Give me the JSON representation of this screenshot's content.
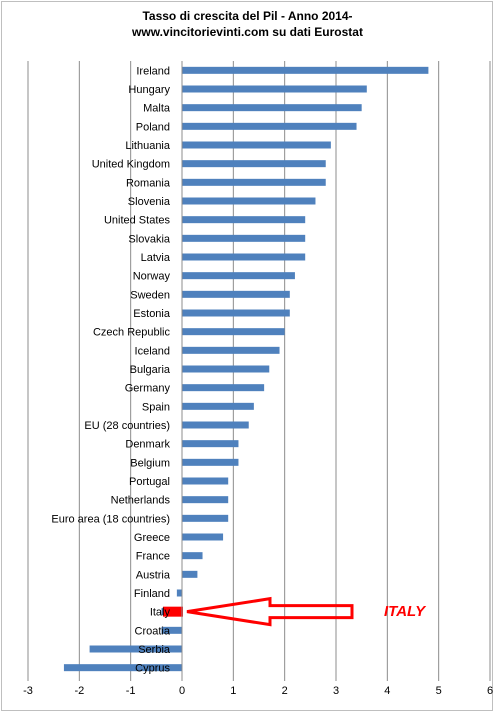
{
  "chart_data": {
    "type": "bar",
    "orientation": "horizontal",
    "title": "Tasso di crescita del Pil - Anno 2014-",
    "subtitle": "www.vincitorievinti.com su dati Eurostat",
    "categories": [
      "Ireland",
      "Hungary",
      "Malta",
      "Poland",
      "Lithuania",
      "United Kingdom",
      "Romania",
      "Slovenia",
      "United States",
      "Slovakia",
      "Latvia",
      "Norway",
      "Sweden",
      "Estonia",
      "Czech Republic",
      "Iceland",
      "Bulgaria",
      "Germany",
      "Spain",
      "EU (28 countries)",
      "Denmark",
      "Belgium",
      "Portugal",
      "Netherlands",
      "Euro area (18 countries)",
      "Greece",
      "France",
      "Austria",
      "Finland",
      "Italy",
      "Croatia",
      "Serbia",
      "Cyprus"
    ],
    "values": [
      4.8,
      3.6,
      3.5,
      3.4,
      2.9,
      2.8,
      2.8,
      2.6,
      2.4,
      2.4,
      2.4,
      2.2,
      2.1,
      2.1,
      2.0,
      1.9,
      1.7,
      1.6,
      1.4,
      1.3,
      1.1,
      1.1,
      0.9,
      0.9,
      0.9,
      0.8,
      0.4,
      0.3,
      -0.1,
      -0.4,
      -0.4,
      -1.8,
      -2.3
    ],
    "xlim": [
      -3,
      6
    ],
    "xticks": [
      "-3",
      "-2",
      "-1",
      "0",
      "1",
      "2",
      "3",
      "4",
      "5",
      "6"
    ],
    "gridlines": "vertical",
    "legend": "none",
    "colors": {
      "bar": "#4f81bd",
      "grid": "#8c8c8c",
      "highlight": "#ff0000"
    },
    "annotation": {
      "text": "ITALY",
      "target": "Italy"
    }
  }
}
